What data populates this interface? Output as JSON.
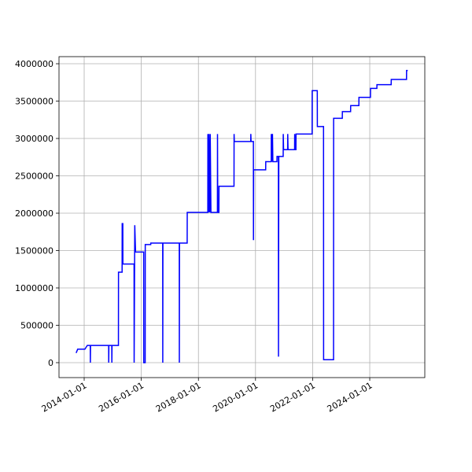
{
  "chart_data": {
    "type": "line",
    "color": "blue",
    "grid": true,
    "x": [
      "2013-09-20",
      "2013-10-10",
      "2014-01-10",
      "2014-02-10",
      "2014-03-20",
      "2014-03-21",
      "2014-03-23",
      "2014-11-10",
      "2014-11-11",
      "2014-11-13",
      "2014-12-20",
      "2014-12-21",
      "2014-12-23",
      "2015-03-15",
      "2015-03-16",
      "2015-05-01",
      "2015-05-02",
      "2015-05-10",
      "2015-05-11",
      "2015-10-01",
      "2015-10-02",
      "2015-10-10",
      "2015-10-20",
      "2016-02-01",
      "2016-02-02",
      "2016-02-20",
      "2016-02-21",
      "2016-05-01",
      "2016-05-02",
      "2016-10-01",
      "2016-10-02",
      "2016-10-04",
      "2017-05-01",
      "2017-05-02",
      "2017-05-04",
      "2017-08-10",
      "2017-08-11",
      "2018-05-01",
      "2018-05-02",
      "2018-05-10",
      "2018-05-15",
      "2018-05-25",
      "2018-06-01",
      "2018-06-10",
      "2018-09-01",
      "2018-09-02",
      "2018-09-05",
      "2018-09-20",
      "2018-09-21",
      "2019-04-01",
      "2019-04-02",
      "2019-04-05",
      "2019-11-01",
      "2019-11-02",
      "2019-11-05",
      "2019-12-05",
      "2019-12-06",
      "2019-12-08",
      "2020-05-10",
      "2020-05-11",
      "2020-07-20",
      "2020-07-21",
      "2020-07-25",
      "2020-08-05",
      "2020-08-10",
      "2020-10-01",
      "2020-10-02",
      "2020-10-20",
      "2020-10-21",
      "2020-10-25",
      "2020-12-20",
      "2020-12-21",
      "2020-12-25",
      "2021-02-15",
      "2021-02-16",
      "2021-02-20",
      "2021-05-15",
      "2021-05-16",
      "2021-05-20",
      "2021-06-01",
      "2021-06-02",
      "2021-12-25",
      "2021-12-26",
      "2022-03-01",
      "2022-03-02",
      "2022-05-20",
      "2022-05-21",
      "2022-09-25",
      "2022-09-26",
      "2023-01-15",
      "2023-01-16",
      "2023-05-01",
      "2023-05-02",
      "2023-08-15",
      "2023-08-16",
      "2024-01-10",
      "2024-01-11",
      "2024-04-01",
      "2024-04-02",
      "2024-10-01",
      "2024-10-02",
      "2025-04-15",
      "2025-04-16",
      "2025-05-01"
    ],
    "values": [
      130000,
      180000,
      180000,
      230000,
      230000,
      0,
      230000,
      230000,
      0,
      230000,
      230000,
      0,
      230000,
      230000,
      1210000,
      1210000,
      1860000,
      1860000,
      1320000,
      1320000,
      0,
      1840000,
      1480000,
      1480000,
      0,
      0,
      1580000,
      1580000,
      1600000,
      1600000,
      0,
      1600000,
      1600000,
      0,
      1600000,
      1600000,
      2010000,
      2010000,
      3060000,
      2010000,
      3060000,
      2010000,
      3060000,
      2010000,
      2010000,
      3060000,
      2010000,
      2010000,
      2360000,
      2360000,
      3060000,
      2960000,
      2960000,
      3060000,
      2960000,
      2960000,
      1640000,
      2580000,
      2580000,
      2690000,
      2690000,
      3060000,
      2690000,
      3060000,
      2690000,
      2690000,
      2760000,
      2760000,
      80000,
      2760000,
      2760000,
      3060000,
      2850000,
      2850000,
      3060000,
      2850000,
      2850000,
      3060000,
      2850000,
      2850000,
      3060000,
      3060000,
      3640000,
      3640000,
      3160000,
      3160000,
      40000,
      40000,
      3270000,
      3270000,
      3360000,
      3360000,
      3440000,
      3440000,
      3550000,
      3550000,
      3670000,
      3670000,
      3720000,
      3720000,
      3790000,
      3790000,
      3910000,
      3910000
    ],
    "xlim": [
      "2013-02-13",
      "2025-12-05"
    ],
    "xticks": [
      "2014-01-01",
      "2016-01-01",
      "2018-01-01",
      "2020-01-01",
      "2022-01-01",
      "2024-01-01"
    ],
    "ylim": [
      -200000,
      4095000
    ],
    "yticks": [
      0,
      500000,
      1000000,
      1500000,
      2000000,
      2500000,
      3000000,
      3500000,
      4000000
    ]
  }
}
